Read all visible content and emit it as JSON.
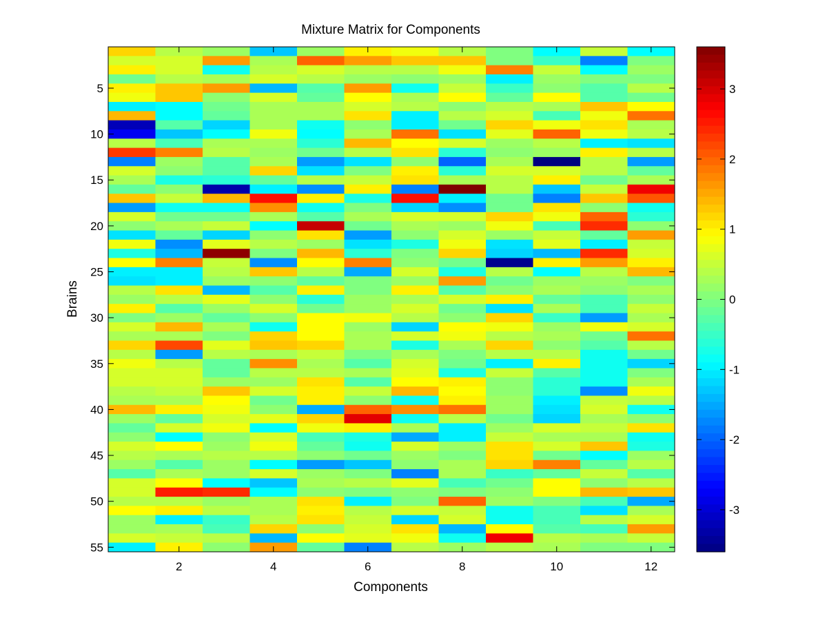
{
  "chart_data": {
    "type": "heatmap",
    "title": "Mixture Matrix for Components",
    "xlabel": "Components",
    "ylabel": "Brains",
    "x_ticks": [
      2,
      4,
      6,
      8,
      10,
      12
    ],
    "y_ticks": [
      5,
      10,
      15,
      20,
      25,
      30,
      35,
      40,
      45,
      50,
      55
    ],
    "xlim": [
      0.5,
      12.5
    ],
    "ylim": [
      0.5,
      55.5
    ],
    "colorbar": {
      "ticks": [
        -3,
        -2,
        -1,
        0,
        1,
        2,
        3
      ],
      "range": [
        -3.6,
        3.6
      ],
      "colormap": "jet"
    },
    "columns": 12,
    "rows": 55,
    "values": [
      [
        1.2,
        0.4,
        0.2,
        -1.3,
        0.2,
        1.0,
        0.8,
        0.4,
        0.0,
        -0.9,
        0.5,
        -0.9
      ],
      [
        0.6,
        0.6,
        1.6,
        0.3,
        2.0,
        1.6,
        1.3,
        1.3,
        0.0,
        -0.5,
        -1.8,
        0.0
      ],
      [
        1.0,
        0.6,
        -0.8,
        0.4,
        0.6,
        0.4,
        0.4,
        0.8,
        1.8,
        0.5,
        -0.9,
        0.2
      ],
      [
        -0.1,
        0.4,
        0.3,
        0.6,
        0.4,
        0.2,
        0.1,
        0.2,
        -1.0,
        0.2,
        0.0,
        0.0
      ],
      [
        1.0,
        1.3,
        1.6,
        -1.4,
        -0.3,
        1.6,
        -0.8,
        0.5,
        -0.5,
        0.1,
        -0.3,
        0.4
      ],
      [
        0.8,
        1.3,
        0.1,
        0.6,
        -0.2,
        0.9,
        0.3,
        0.9,
        -0.2,
        0.9,
        -0.3,
        -0.1
      ],
      [
        -1.0,
        -0.9,
        -0.1,
        0.3,
        0.3,
        0.6,
        0.4,
        0.1,
        0.4,
        0.3,
        1.3,
        0.9
      ],
      [
        1.4,
        -0.9,
        -0.2,
        0.3,
        0.3,
        1.1,
        -1.0,
        0.4,
        0.6,
        -0.4,
        0.8,
        1.9
      ],
      [
        -3.2,
        -0.3,
        -1.2,
        0.3,
        -0.8,
        0.1,
        -1.0,
        -0.1,
        1.2,
        0.8,
        1.1,
        0.3
      ],
      [
        -2.8,
        -1.3,
        -0.9,
        0.8,
        -0.9,
        0.3,
        1.9,
        -1.1,
        0.7,
        2.0,
        0.8,
        0.4
      ],
      [
        0.4,
        -0.4,
        0.3,
        0.3,
        -0.6,
        1.4,
        0.9,
        0.6,
        0.2,
        0.4,
        -1.0,
        -1.1
      ],
      [
        2.3,
        1.8,
        0.4,
        0.2,
        -0.1,
        0.4,
        1.1,
        -0.6,
        0.1,
        0.2,
        1.0,
        0.4
      ],
      [
        -1.8,
        0.2,
        -0.3,
        0.3,
        -1.6,
        -1.1,
        0.1,
        -2.0,
        0.3,
        -3.7,
        0.4,
        -1.6
      ],
      [
        0.6,
        0.1,
        -0.3,
        1.2,
        -1.1,
        0.0,
        1.0,
        -0.6,
        0.6,
        0.6,
        0.4,
        -0.2
      ],
      [
        0.3,
        -0.7,
        -0.6,
        -0.2,
        0.4,
        0.5,
        1.1,
        0.3,
        0.4,
        1.0,
        -0.1,
        0.3
      ],
      [
        -0.2,
        0.1,
        -3.3,
        -1.0,
        -1.7,
        1.0,
        -1.8,
        3.6,
        0.4,
        -1.3,
        0.5,
        2.8
      ],
      [
        1.3,
        0.5,
        1.4,
        2.6,
        1.0,
        -0.7,
        2.6,
        -1.0,
        -0.1,
        -1.8,
        1.3,
        2.1
      ],
      [
        -1.6,
        -0.8,
        -0.8,
        1.7,
        -0.8,
        0.0,
        -1.2,
        -1.7,
        -0.1,
        1.1,
        0.1,
        -0.8
      ],
      [
        0.6,
        -0.1,
        -0.1,
        0.3,
        -0.3,
        0.3,
        0.6,
        0.6,
        1.2,
        0.8,
        2.0,
        -0.6
      ],
      [
        0.1,
        0.3,
        0.5,
        -0.9,
        3.1,
        -0.1,
        0.3,
        0.2,
        0.8,
        -0.4,
        2.4,
        0.1
      ],
      [
        -1.1,
        -0.2,
        -1.2,
        0.1,
        1.1,
        -1.6,
        0.1,
        0.6,
        0.2,
        0.5,
        -0.2,
        1.6
      ],
      [
        0.8,
        -1.7,
        0.7,
        0.4,
        0.2,
        -1.1,
        -0.7,
        0.8,
        -1.1,
        0.7,
        -1.0,
        0.5
      ],
      [
        -0.7,
        -1.4,
        3.5,
        0.0,
        1.4,
        -0.6,
        0.0,
        1.2,
        -1.2,
        -1.4,
        2.4,
        0.6
      ],
      [
        0.9,
        1.8,
        0.5,
        -1.7,
        0.9,
        1.8,
        0.1,
        -0.1,
        -3.5,
        1.0,
        1.6,
        1.0
      ],
      [
        -1.0,
        -1.0,
        0.4,
        1.3,
        0.4,
        -1.5,
        0.6,
        -0.7,
        0.4,
        -0.9,
        0.4,
        1.4
      ],
      [
        -1.1,
        -1.0,
        0.2,
        0.1,
        -0.2,
        0.0,
        0.2,
        1.6,
        -0.1,
        0.2,
        0.2,
        0.0
      ],
      [
        0.4,
        1.1,
        -1.4,
        -0.3,
        1.0,
        0.0,
        1.0,
        -0.3,
        0.1,
        0.3,
        0.1,
        0.3
      ],
      [
        0.2,
        0.4,
        0.7,
        0.1,
        -0.6,
        0.2,
        0.3,
        0.6,
        1.0,
        -0.2,
        -0.4,
        0.1
      ],
      [
        1.0,
        -0.3,
        0.2,
        0.6,
        -0.1,
        0.2,
        0.6,
        -0.1,
        -1.1,
        0.3,
        -0.4,
        0.5
      ],
      [
        0.0,
        0.2,
        -0.2,
        0.1,
        0.9,
        0.8,
        0.4,
        0.1,
        1.2,
        -0.5,
        -1.6,
        0.3
      ],
      [
        0.6,
        1.4,
        0.3,
        -0.8,
        0.9,
        0.2,
        -1.2,
        0.9,
        0.8,
        0.2,
        0.8,
        0.6
      ],
      [
        0.3,
        0.3,
        0.0,
        1.2,
        0.9,
        0.3,
        0.6,
        0.8,
        0.4,
        0.3,
        -0.1,
        1.9
      ],
      [
        1.2,
        2.2,
        0.7,
        1.3,
        1.2,
        0.3,
        -0.7,
        0.3,
        1.2,
        0.1,
        -0.3,
        0.4
      ],
      [
        0.4,
        -1.6,
        0.4,
        0.3,
        0.5,
        0.0,
        0.3,
        0.0,
        0.4,
        0.4,
        -0.8,
        -0.1
      ],
      [
        0.8,
        0.4,
        -0.2,
        1.7,
        0.3,
        -0.3,
        0.6,
        -0.1,
        -1.0,
        1.0,
        -0.8,
        -1.2
      ],
      [
        0.6,
        0.6,
        -0.2,
        0.4,
        0.4,
        0.3,
        0.7,
        -0.7,
        0.5,
        -0.3,
        -0.8,
        0.0
      ],
      [
        0.6,
        0.6,
        0.2,
        0.2,
        1.1,
        -0.3,
        0.9,
        1.0,
        0.1,
        -0.6,
        -0.8,
        0.3
      ],
      [
        0.4,
        0.5,
        1.3,
        0.6,
        1.0,
        0.5,
        1.4,
        0.9,
        0.1,
        -0.6,
        -1.7,
        0.8
      ],
      [
        0.3,
        0.3,
        0.9,
        -0.1,
        1.0,
        0.1,
        -0.8,
        1.0,
        0.2,
        -1.0,
        0.5,
        0.4
      ],
      [
        1.4,
        1.0,
        0.8,
        0.1,
        -1.5,
        2.0,
        1.7,
        1.9,
        0.2,
        -1.1,
        0.6,
        -0.8
      ],
      [
        0.2,
        -0.2,
        0.6,
        0.7,
        1.2,
        2.9,
        -0.8,
        0.4,
        -0.1,
        -1.2,
        0.3,
        0.1
      ],
      [
        -0.2,
        0.6,
        0.8,
        -0.9,
        0.8,
        1.0,
        0.3,
        -1.0,
        0.2,
        0.6,
        0.5,
        1.1
      ],
      [
        0.1,
        -0.9,
        0.1,
        0.6,
        -0.4,
        -0.7,
        -1.5,
        -1.0,
        0.5,
        0.3,
        0.3,
        -0.8
      ],
      [
        0.6,
        0.9,
        0.2,
        0.8,
        -0.2,
        -0.8,
        0.6,
        0.2,
        1.1,
        0.6,
        1.3,
        -0.7
      ],
      [
        0.4,
        0.3,
        0.4,
        0.4,
        0.1,
        -0.1,
        0.2,
        0.0,
        1.1,
        -0.1,
        -0.9,
        0.2
      ],
      [
        0.2,
        -0.3,
        0.2,
        -0.9,
        -1.6,
        -1.3,
        0.1,
        0.3,
        1.2,
        1.8,
        -0.2,
        0.4
      ],
      [
        -0.3,
        0.3,
        0.2,
        0.6,
        0.2,
        0.0,
        -1.8,
        0.3,
        -0.5,
        -0.2,
        0.5,
        -0.3
      ],
      [
        0.6,
        0.9,
        -0.9,
        -1.3,
        0.3,
        0.4,
        0.7,
        -0.4,
        -0.1,
        0.9,
        0.1,
        0.4
      ],
      [
        0.6,
        2.5,
        2.4,
        -0.9,
        0.1,
        0.0,
        0.1,
        0.0,
        0.1,
        0.9,
        1.4,
        1.3
      ],
      [
        0.4,
        0.4,
        0.2,
        0.3,
        1.1,
        -1.0,
        0.0,
        2.0,
        0.2,
        0.0,
        -0.4,
        -1.5
      ],
      [
        0.9,
        1.0,
        0.4,
        0.3,
        1.0,
        0.4,
        0.6,
        0.5,
        -0.8,
        -0.4,
        -1.1,
        0.3
      ],
      [
        0.2,
        -1.0,
        -0.5,
        0.4,
        1.1,
        0.5,
        -1.2,
        0.6,
        -0.8,
        -0.4,
        0.4,
        0.6
      ],
      [
        0.2,
        0.3,
        -0.4,
        1.2,
        0.1,
        0.6,
        1.1,
        -1.4,
        0.9,
        -0.3,
        -0.4,
        1.6
      ],
      [
        0.6,
        0.5,
        0.4,
        -1.4,
        0.9,
        0.7,
        0.8,
        -0.8,
        2.8,
        0.4,
        0.3,
        0.5
      ],
      [
        -1.0,
        1.0,
        0.1,
        1.6,
        -0.2,
        -1.8,
        0.4,
        0.2,
        0.4,
        0.3,
        0.0,
        0.0
      ]
    ]
  },
  "chart_data_note_omitted": true
}
